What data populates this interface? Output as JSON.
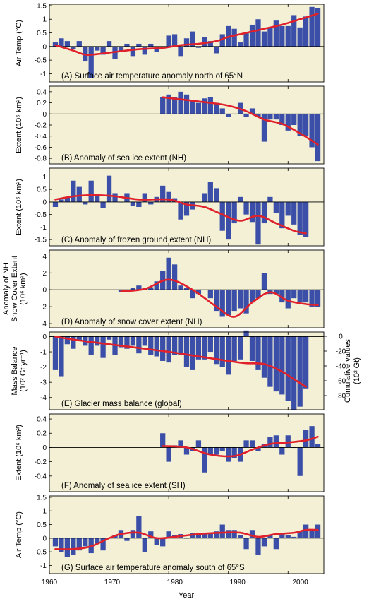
{
  "figure": {
    "x_axis_label": "Year",
    "x_ticks": [
      1960,
      1970,
      1980,
      1990,
      2000
    ],
    "x_range": [
      1960,
      2006
    ],
    "panel_background": "#f3f0d6",
    "bar_color": "#3b4fa8",
    "trend_color": "#e0202a",
    "zero_line_color": "#000000"
  },
  "chart_data": [
    {
      "type": "bar",
      "label": "(A) Surface air temperature anomaly north of 65°N",
      "ylabel_lines": [
        "Air Temp  (°C)"
      ],
      "ylim": [
        -1.3,
        1.55
      ],
      "yticks": [
        1.5,
        1.0,
        0.5,
        0.0,
        -0.5,
        -1.0
      ],
      "x": [
        1961,
        1962,
        1963,
        1964,
        1965,
        1966,
        1967,
        1968,
        1969,
        1970,
        1971,
        1972,
        1973,
        1974,
        1975,
        1976,
        1977,
        1978,
        1979,
        1980,
        1981,
        1982,
        1983,
        1984,
        1985,
        1986,
        1987,
        1988,
        1989,
        1990,
        1991,
        1992,
        1993,
        1994,
        1995,
        1996,
        1997,
        1998,
        1999,
        2000,
        2001,
        2002,
        2003,
        2004,
        2005
      ],
      "values": [
        0.15,
        0.3,
        0.2,
        -0.1,
        0.2,
        -0.55,
        -1.15,
        -0.15,
        -0.3,
        0.2,
        -0.45,
        -0.2,
        0.1,
        -0.35,
        0.1,
        -0.3,
        0.1,
        -0.2,
        -0.05,
        0.4,
        0.45,
        -0.35,
        0.3,
        0.55,
        -0.05,
        0.35,
        0.2,
        -0.25,
        0.45,
        0.75,
        0.65,
        0.15,
        0.5,
        0.8,
        1.0,
        0.55,
        0.7,
        0.95,
        0.75,
        0.75,
        1.15,
        0.7,
        1.1,
        1.45,
        1.4
      ],
      "trend_x": [
        1961,
        1964,
        1966,
        1968,
        1971,
        1975,
        1979,
        1982,
        1985,
        1988,
        1990,
        1993,
        1996,
        1999,
        2002,
        2005
      ],
      "trend_y": [
        0.05,
        -0.15,
        -0.3,
        -0.28,
        -0.2,
        -0.1,
        -0.05,
        0.05,
        0.1,
        0.2,
        0.35,
        0.5,
        0.65,
        0.8,
        1.0,
        1.2
      ]
    },
    {
      "type": "bar",
      "label": "(B) Anomaly of sea ice extent (NH)",
      "ylabel_lines": [
        "Extent  (10⁶ km²)"
      ],
      "ylim": [
        -0.9,
        0.5
      ],
      "yticks": [
        0.4,
        0.2,
        0.0,
        -0.2,
        -0.4,
        -0.6,
        -0.8
      ],
      "x": [
        1979,
        1980,
        1981,
        1982,
        1983,
        1984,
        1985,
        1986,
        1987,
        1988,
        1989,
        1990,
        1991,
        1992,
        1993,
        1994,
        1995,
        1996,
        1997,
        1998,
        1999,
        2000,
        2001,
        2002,
        2003,
        2004,
        2005
      ],
      "values": [
        0.3,
        0.35,
        0.3,
        0.4,
        0.35,
        0.25,
        0.2,
        0.28,
        0.3,
        0.2,
        0.1,
        -0.05,
        0.0,
        0.2,
        -0.05,
        0.1,
        -0.05,
        -0.5,
        -0.1,
        -0.1,
        -0.2,
        -0.3,
        -0.2,
        -0.4,
        -0.4,
        -0.6,
        -0.85
      ],
      "trend_x": [
        1979,
        1983,
        1987,
        1990,
        1993,
        1996,
        1999,
        2002,
        2005
      ],
      "trend_y": [
        0.3,
        0.25,
        0.2,
        0.15,
        0.05,
        -0.1,
        -0.18,
        -0.35,
        -0.55
      ]
    },
    {
      "type": "bar",
      "label": "(C) Anomaly of frozen ground extent (NH)",
      "ylabel_lines": [
        "Extent  (10⁶ km²)"
      ],
      "ylim": [
        -1.75,
        1.35
      ],
      "yticks": [
        1.0,
        0.5,
        0.0,
        -0.5,
        -1.0,
        -1.5
      ],
      "x": [
        1961,
        1962,
        1963,
        1964,
        1965,
        1966,
        1967,
        1968,
        1969,
        1970,
        1971,
        1972,
        1973,
        1974,
        1975,
        1976,
        1977,
        1978,
        1979,
        1980,
        1981,
        1982,
        1983,
        1984,
        1985,
        1986,
        1987,
        1988,
        1989,
        1990,
        1991,
        1992,
        1993,
        1994,
        1995,
        1996,
        1997,
        1998,
        1999,
        2000,
        2001,
        2002,
        2003
      ],
      "values": [
        -0.2,
        0.1,
        0.2,
        0.85,
        0.6,
        -0.1,
        0.85,
        0.3,
        -0.25,
        1.05,
        0.35,
        0.0,
        0.35,
        -0.15,
        -0.2,
        0.35,
        -0.1,
        0.2,
        0.65,
        0.4,
        0.15,
        -0.7,
        -0.55,
        -0.3,
        0.0,
        0.35,
        0.8,
        0.55,
        -1.15,
        -1.5,
        -0.85,
        0.2,
        -0.5,
        -0.8,
        -1.7,
        -0.85,
        0.2,
        -0.45,
        -1.05,
        -0.55,
        -0.9,
        -1.3,
        -1.4
      ],
      "trend_x": [
        1961,
        1965,
        1970,
        1975,
        1980,
        1983,
        1986,
        1989,
        1992,
        1995,
        1998,
        2001,
        2003
      ],
      "trend_y": [
        0.1,
        0.25,
        0.25,
        0.1,
        0.1,
        -0.1,
        -0.2,
        -0.5,
        -0.75,
        -0.55,
        -0.85,
        -1.15,
        -1.25
      ]
    },
    {
      "type": "bar",
      "label": "(D) Anomaly of snow cover extent (NH)",
      "ylabel_lines": [
        "Anomaly of NH",
        "Snow Cover Extent",
        "(10⁶ km²)"
      ],
      "ylim": [
        -4.5,
        4.7
      ],
      "yticks": [
        4,
        2,
        0,
        -2,
        -4
      ],
      "x": [
        1972,
        1973,
        1974,
        1975,
        1976,
        1977,
        1978,
        1979,
        1980,
        1981,
        1982,
        1983,
        1984,
        1985,
        1986,
        1987,
        1988,
        1989,
        1990,
        1991,
        1992,
        1993,
        1994,
        1995,
        1996,
        1997,
        1998,
        1999,
        2000,
        2001,
        2002,
        2003,
        2004,
        2005
      ],
      "values": [
        -0.3,
        -0.3,
        0.2,
        0.5,
        0.2,
        0.3,
        1.0,
        2.2,
        3.8,
        3.0,
        0.5,
        0.2,
        -1.0,
        -0.5,
        0.0,
        -1.0,
        -2.5,
        -3.2,
        -3.0,
        -2.5,
        -2.2,
        -2.8,
        -1.5,
        -1.0,
        2.0,
        -0.5,
        -0.5,
        -1.5,
        -2.2,
        -1.0,
        -1.5,
        -1.5,
        -2.0,
        -2.0
      ],
      "trend_x": [
        1972,
        1976,
        1980,
        1984,
        1988,
        1991,
        1994,
        1997,
        2000,
        2003,
        2005
      ],
      "trend_y": [
        -0.2,
        0.1,
        1.2,
        0.0,
        -2.0,
        -3.2,
        -1.5,
        -0.3,
        -1.3,
        -1.7,
        -1.8
      ]
    },
    {
      "type": "bar",
      "label": "(E) Glacier mass balance (global)",
      "ylabel_lines": [
        "Mass Balance",
        "(10² Gt yr⁻¹)"
      ],
      "y2label_lines": [
        "Cumulative values",
        "(10² Gt)"
      ],
      "ylim": [
        -4.8,
        0.3
      ],
      "yticks": [
        0,
        -1,
        -2,
        -3,
        -4
      ],
      "y2ticks": [
        "0",
        "-20",
        "-40",
        "-60",
        "-80"
      ],
      "x": [
        1961,
        1962,
        1963,
        1964,
        1965,
        1966,
        1967,
        1968,
        1969,
        1970,
        1971,
        1972,
        1973,
        1974,
        1975,
        1976,
        1977,
        1978,
        1979,
        1980,
        1981,
        1982,
        1983,
        1984,
        1985,
        1986,
        1987,
        1988,
        1989,
        1990,
        1991,
        1992,
        1993,
        1994,
        1995,
        1996,
        1997,
        1998,
        1999,
        2000,
        2001,
        2002,
        2003
      ],
      "values": [
        -2.2,
        -2.6,
        -0.5,
        -0.8,
        -0.3,
        -0.6,
        -1.2,
        -0.6,
        -1.4,
        -0.2,
        -1.2,
        -0.7,
        -0.8,
        -0.6,
        -1.1,
        -0.6,
        -1.2,
        -1.3,
        -1.6,
        -1.7,
        -1.2,
        -1.2,
        -2.0,
        -2.2,
        -1.5,
        -1.5,
        -1.0,
        -1.8,
        -2.0,
        -2.5,
        -1.6,
        -1.5,
        0.4,
        -1.6,
        -2.2,
        -2.7,
        -3.3,
        -3.6,
        -3.8,
        -4.2,
        -4.8,
        -4.6,
        -3.4
      ],
      "trend_x": [
        1961,
        1965,
        1970,
        1975,
        1980,
        1985,
        1990,
        1993,
        1996,
        1999,
        2001,
        2003
      ],
      "trend_y": [
        0.0,
        -0.25,
        -0.5,
        -0.75,
        -1.0,
        -1.3,
        -1.6,
        -1.75,
        -1.8,
        -2.3,
        -2.8,
        -3.3
      ]
    },
    {
      "type": "bar",
      "label": "(F) Anomaly of sea ice extent (SH)",
      "ylabel_lines": [
        "Extent  (10⁶ km²)"
      ],
      "ylim": [
        -0.62,
        0.47
      ],
      "yticks": [
        0.4,
        0.2,
        0.0,
        -0.2,
        -0.4
      ],
      "x": [
        1979,
        1980,
        1981,
        1982,
        1983,
        1984,
        1985,
        1986,
        1987,
        1988,
        1989,
        1990,
        1991,
        1992,
        1993,
        1994,
        1995,
        1996,
        1997,
        1998,
        1999,
        2000,
        2001,
        2002,
        2003,
        2004,
        2005
      ],
      "values": [
        0.2,
        -0.2,
        0.03,
        0.1,
        -0.1,
        -0.05,
        0.1,
        -0.35,
        -0.1,
        -0.1,
        -0.05,
        -0.2,
        -0.15,
        -0.2,
        0.1,
        0.1,
        -0.05,
        0.05,
        0.15,
        0.17,
        -0.1,
        0.17,
        0.0,
        -0.4,
        0.25,
        0.3,
        0.05
      ],
      "trend_x": [
        1979,
        1983,
        1987,
        1991,
        1994,
        1997,
        2000,
        2003,
        2005
      ],
      "trend_y": [
        0.02,
        0.0,
        -0.1,
        -0.12,
        -0.03,
        0.05,
        0.07,
        0.1,
        0.15
      ]
    },
    {
      "type": "bar",
      "label": "(G) Surface air temperature anomaly south of 65°S",
      "ylabel_lines": [
        "Air Temp  (°C)"
      ],
      "ylim": [
        -1.3,
        1.55
      ],
      "yticks": [
        1.5,
        1.0,
        0.5,
        0.0,
        -0.5,
        -1.0
      ],
      "x": [
        1961,
        1962,
        1963,
        1964,
        1965,
        1966,
        1967,
        1968,
        1969,
        1970,
        1971,
        1972,
        1973,
        1974,
        1975,
        1976,
        1977,
        1978,
        1979,
        1980,
        1981,
        1982,
        1983,
        1984,
        1985,
        1986,
        1987,
        1988,
        1989,
        1990,
        1991,
        1992,
        1993,
        1994,
        1995,
        1996,
        1997,
        1998,
        1999,
        2000,
        2001,
        2002,
        2003,
        2004,
        2005
      ],
      "values": [
        -0.3,
        -0.5,
        -0.7,
        -0.6,
        -0.45,
        -0.3,
        -0.55,
        -0.2,
        -0.45,
        0.0,
        0.1,
        0.3,
        -0.1,
        0.3,
        0.8,
        -0.5,
        0.25,
        -0.25,
        -0.3,
        0.25,
        0.1,
        0.15,
        0.0,
        0.2,
        0.15,
        0.15,
        0.2,
        0.25,
        0.5,
        0.3,
        0.3,
        0.1,
        -0.4,
        0.3,
        -0.6,
        -0.3,
        0.1,
        -0.4,
        0.2,
        0.1,
        0.05,
        0.25,
        0.5,
        0.3,
        0.5
      ],
      "trend_x": [
        1961,
        1964,
        1967,
        1970,
        1972,
        1975,
        1978,
        1981,
        1985,
        1989,
        1992,
        1995,
        1998,
        2001,
        2003,
        2005
      ],
      "trend_y": [
        -0.4,
        -0.4,
        -0.3,
        0.0,
        0.15,
        0.2,
        0.0,
        0.05,
        0.15,
        0.2,
        0.2,
        0.05,
        0.15,
        0.2,
        0.3,
        0.3
      ]
    }
  ]
}
